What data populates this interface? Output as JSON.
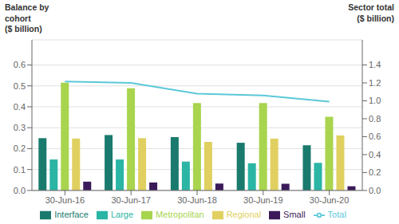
{
  "chart_data": {
    "type": "bar",
    "ylabel": "Balance by\ncohort\n($ billion)",
    "y2label": "Sector total\n($ billion)",
    "categories": [
      "30-Jun-16",
      "30-Jun-17",
      "30-Jun-18",
      "30-Jun-19",
      "30-Jun-20"
    ],
    "series": [
      {
        "name": "Interface",
        "color": "#1a7a6e",
        "values": [
          0.25,
          0.265,
          0.255,
          0.228,
          0.216
        ]
      },
      {
        "name": "Large",
        "color": "#2ab5a5",
        "values": [
          0.148,
          0.148,
          0.138,
          0.13,
          0.132
        ]
      },
      {
        "name": "Metropolitan",
        "color": "#a8d44e",
        "values": [
          0.515,
          0.488,
          0.418,
          0.418,
          0.352
        ]
      },
      {
        "name": "Regional",
        "color": "#e0d060",
        "values": [
          0.248,
          0.25,
          0.232,
          0.248,
          0.263
        ]
      },
      {
        "name": "Small",
        "color": "#3b1a5a",
        "values": [
          0.042,
          0.038,
          0.033,
          0.032,
          0.02
        ]
      },
      {
        "name": "Total",
        "type": "line",
        "axis": "y2",
        "color": "#5bc8d8",
        "values": [
          1.215,
          1.2,
          1.08,
          1.06,
          0.99
        ]
      }
    ],
    "ylim": [
      0,
      0.72
    ],
    "yticks": [
      {
        "value": 0,
        "label": "0.0"
      },
      0.1,
      0.2,
      0.3,
      0.4,
      0.5,
      0.6
    ],
    "y2lim": [
      0,
      1.68
    ],
    "y2ticks": [
      {
        "value": 0,
        "label": "0.0"
      },
      0.2,
      0.4,
      0.6,
      0.8,
      {
        "value": 1,
        "label": "1.0"
      },
      1.2,
      1.4
    ],
    "grid": true,
    "legend": "bottom"
  }
}
